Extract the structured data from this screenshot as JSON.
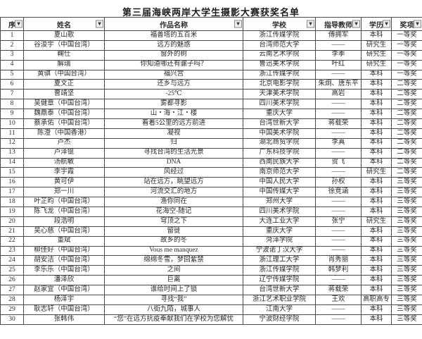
{
  "title": "第三届海峡两岸大学生摄影大赛获奖名单",
  "icons": {
    "filter_dropdown": "▼"
  },
  "colors": {
    "border": "#4a4a4a",
    "text": "#2b2b2b",
    "filter_button_bg": "#eeeeee",
    "background": "#ffffff"
  },
  "table": {
    "columns": [
      "序",
      "姓名",
      "作品名称",
      "学校",
      "指导教师",
      "学历",
      "奖项"
    ],
    "rows": [
      [
        "1",
        "夏山歌",
        "福善塔的五百米",
        "浙江传媒学院",
        "傅拥军",
        "本科",
        "一等奖"
      ],
      [
        "2",
        "谷浚宇（中国台湾）",
        "远方的魅惑",
        "台湾师范大学",
        "——",
        "研究生",
        "一等奖"
      ],
      [
        "3",
        "鞠仕",
        "窗外的树",
        "云南艺术学院",
        "李季",
        "研究生",
        "一等奖"
      ],
      [
        "4",
        "解瑞",
        "你知道哪还有骡子吗？",
        "鲁迅美术学院",
        "叶红",
        "研究生",
        "一等奖"
      ],
      [
        "5",
        "黄骐（中国台湾）",
        "福兴宫",
        "浙江传媒学院",
        "——",
        "本科",
        "一等奖"
      ],
      [
        "6",
        "夏文正",
        "还乡与远方",
        "北京电影学院",
        "朱炯、唐东平",
        "本科",
        "二等奖"
      ],
      [
        "7",
        "曹靖坚",
        "-25℃",
        "天津美术学院",
        "高岩",
        "本科",
        "二等奖"
      ],
      [
        "8",
        "吴健章（中国台湾）",
        "雾都寻影",
        "四川美术学院",
        "——",
        "本科",
        "二等奖"
      ],
      [
        "9",
        "魏鼎泰（中国台湾）",
        "山・海・江・楼",
        "重庆大学",
        "——",
        "本科",
        "二等奖"
      ],
      [
        "10",
        "蔡承佑（中国台湾）",
        "看着5公里的远方前进",
        "台湾世新大学",
        "蒋载荣",
        "本科",
        "二等奖"
      ],
      [
        "11",
        "陈澄（中国香港）",
        "凝视",
        "中国美术学院",
        "——",
        "本科",
        "二等奖"
      ],
      [
        "12",
        "卢杰",
        "归",
        "湖北商贸学院",
        "李真",
        "本科",
        "二等奖"
      ],
      [
        "13",
        "卢泽锟",
        "寻找台湾的生活光景",
        "广东科技学院",
        "——",
        "本科",
        "二等奖"
      ],
      [
        "14",
        "汤航敏",
        "DNA",
        "西南民族大学",
        "贺飞",
        "本科",
        "二等奖"
      ],
      [
        "15",
        "李宇霞",
        "风经过",
        "南京师范大学",
        "——",
        "研究生",
        "二等奖"
      ],
      [
        "16",
        "黄可伊",
        "站在远方，眺望远方",
        "中国人民大学",
        "孙权",
        "本科",
        "三等奖"
      ],
      [
        "17",
        "郑一川",
        "河流交汇的地方",
        "中国传媒大学",
        "徐竞涵",
        "本科",
        "三等奖"
      ],
      [
        "18",
        "叶芷昀（中国台湾）",
        "渔你同在",
        "郑州大学",
        "——",
        "本科",
        "三等奖"
      ],
      [
        "19",
        "陈飞龙（中国台湾）",
        "花海空-随记",
        "四川美术学院",
        "——",
        "本科",
        "三等奖"
      ],
      [
        "20",
        "段浩明",
        "穹顶之下",
        "大连工业大学",
        "张宁",
        "研究生",
        "三等奖"
      ],
      [
        "21",
        "吴心慈（中国台湾）",
        "留徙",
        "重庆大学",
        "——",
        "本科",
        "三等奖"
      ],
      [
        "22",
        "董斌",
        "故乡的冬",
        "菏泽学院",
        "——",
        "本科",
        "三等奖"
      ],
      [
        "23",
        "柳佳好（中国台湾）",
        "Vous me manquez",
        "宁波诺丁汉大学",
        "——",
        "本科",
        "三等奖"
      ],
      [
        "24",
        "胡安洁（中国台湾）",
        "绵绵冬雪，梦回紫禁",
        "浙江理工大学",
        "肖秀丽",
        "本科",
        "三等奖"
      ],
      [
        "25",
        "李乐乐（中国台湾）",
        "之间",
        "浙江传媒学院",
        "韩梦利",
        "本科",
        "三等奖"
      ],
      [
        "26",
        "潘泽欣",
        "巨离",
        "辽宁传媒学院",
        "——",
        "本科",
        "三等奖"
      ],
      [
        "27",
        "赵家宜（中国台湾）",
        "谁给时间上了锁",
        "台湾世新大学",
        "蒋载荣",
        "本科",
        "三等奖"
      ],
      [
        "28",
        "杨泽宇",
        "寻找“我”",
        "浙江艺术职业学院",
        "王欢",
        "高职高专",
        "三等奖"
      ],
      [
        "29",
        "耿志轩（中国台湾）",
        "八街九陌，城事人",
        "江南大学",
        "——",
        "本科",
        "三等奖"
      ],
      [
        "30",
        "张韩伟",
        "“您”在远方抗疫奉献我们在学校为您解忧",
        "宁波财经学院",
        "——",
        "本科",
        "三等奖"
      ]
    ]
  }
}
